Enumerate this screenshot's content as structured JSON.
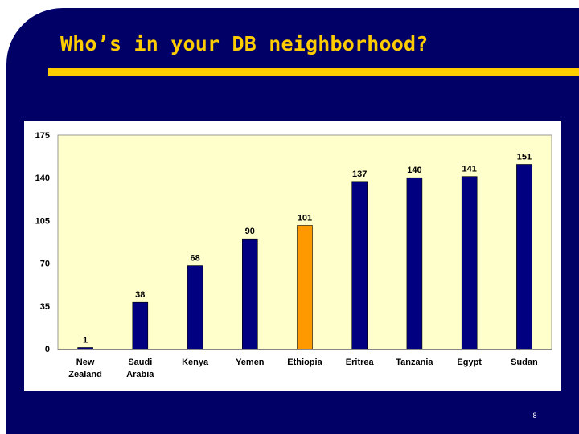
{
  "slide": {
    "title": "Who’s in your DB neighborhood?",
    "page_number": "8"
  },
  "colors": {
    "background": "#000066",
    "accent": "#ffcc00",
    "plot_area": "#ffffcc",
    "bar": "#000080",
    "bar_highlight": "#ff9900"
  },
  "chart_data": {
    "type": "bar",
    "title": "",
    "xlabel": "",
    "ylabel": "",
    "ylim": [
      0,
      175
    ],
    "yticks": [
      0,
      35,
      70,
      105,
      140,
      175
    ],
    "grid": false,
    "legend": "none",
    "categories": [
      "New Zealand",
      "Saudi Arabia",
      "Kenya",
      "Yemen",
      "Ethiopia",
      "Eritrea",
      "Tanzania",
      "Egypt",
      "Sudan"
    ],
    "category_lines": [
      [
        "New",
        "Zealand"
      ],
      [
        "Saudi",
        "Arabia"
      ],
      [
        "Kenya"
      ],
      [
        "Yemen"
      ],
      [
        "Ethiopia"
      ],
      [
        "Eritrea"
      ],
      [
        "Tanzania"
      ],
      [
        "Egypt"
      ],
      [
        "Sudan"
      ]
    ],
    "values": [
      1,
      38,
      68,
      90,
      101,
      137,
      140,
      141,
      151
    ],
    "highlight": "Ethiopia"
  }
}
